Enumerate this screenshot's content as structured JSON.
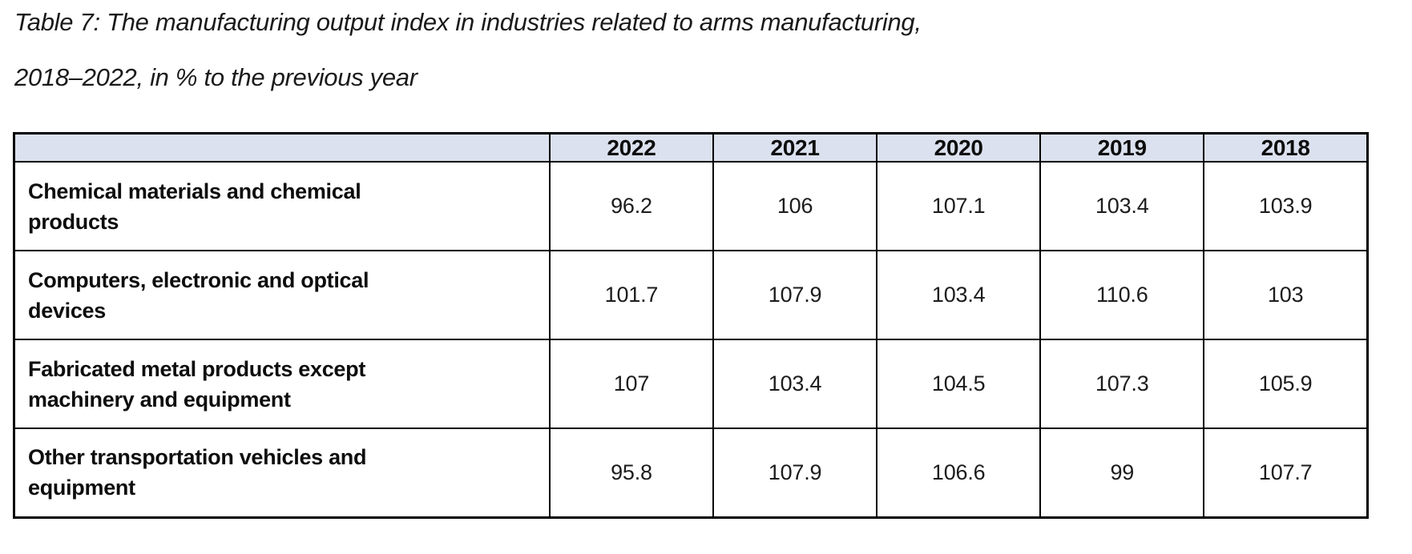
{
  "caption": {
    "line1": "Table 7: The manufacturing output index in industries related to arms manufacturing,",
    "line2": "2018–2022, in % to the previous year"
  },
  "table": {
    "corner_label": "",
    "years": [
      "2022",
      "2021",
      "2020",
      "2019",
      "2018"
    ],
    "rows": [
      {
        "label": "Chemical materials and chemical products",
        "values": [
          "96.2",
          "106",
          "107.1",
          "103.4",
          "103.9"
        ]
      },
      {
        "label": "Computers, electronic and optical devices",
        "values": [
          "101.7",
          "107.9",
          "103.4",
          "110.6",
          "103"
        ]
      },
      {
        "label": "Fabricated metal products except machinery and equipment",
        "values": [
          "107",
          "103.4",
          "104.5",
          "107.3",
          "105.9"
        ]
      },
      {
        "label": "Other transportation vehicles and equipment",
        "values": [
          "95.8",
          "107.9",
          "106.6",
          "99",
          "107.7"
        ]
      }
    ]
  },
  "chart_data": {
    "type": "table",
    "title": "Table 7: The manufacturing output index in industries related to arms manufacturing, 2018–2022, in % to the previous year",
    "columns": [
      "",
      "2022",
      "2021",
      "2020",
      "2019",
      "2018"
    ],
    "rows": [
      [
        "Chemical materials and chemical products",
        96.2,
        106,
        107.1,
        103.4,
        103.9
      ],
      [
        "Computers, electronic and optical devices",
        101.7,
        107.9,
        103.4,
        110.6,
        103
      ],
      [
        "Fabricated metal products except machinery and equipment",
        107,
        103.4,
        104.5,
        107.3,
        105.9
      ],
      [
        "Other transportation vehicles and equipment",
        95.8,
        107.9,
        106.6,
        99,
        107.7
      ]
    ]
  },
  "colors": {
    "header_bg": "#dbe1ee",
    "border": "#000000",
    "text": "#0d0d0d"
  }
}
